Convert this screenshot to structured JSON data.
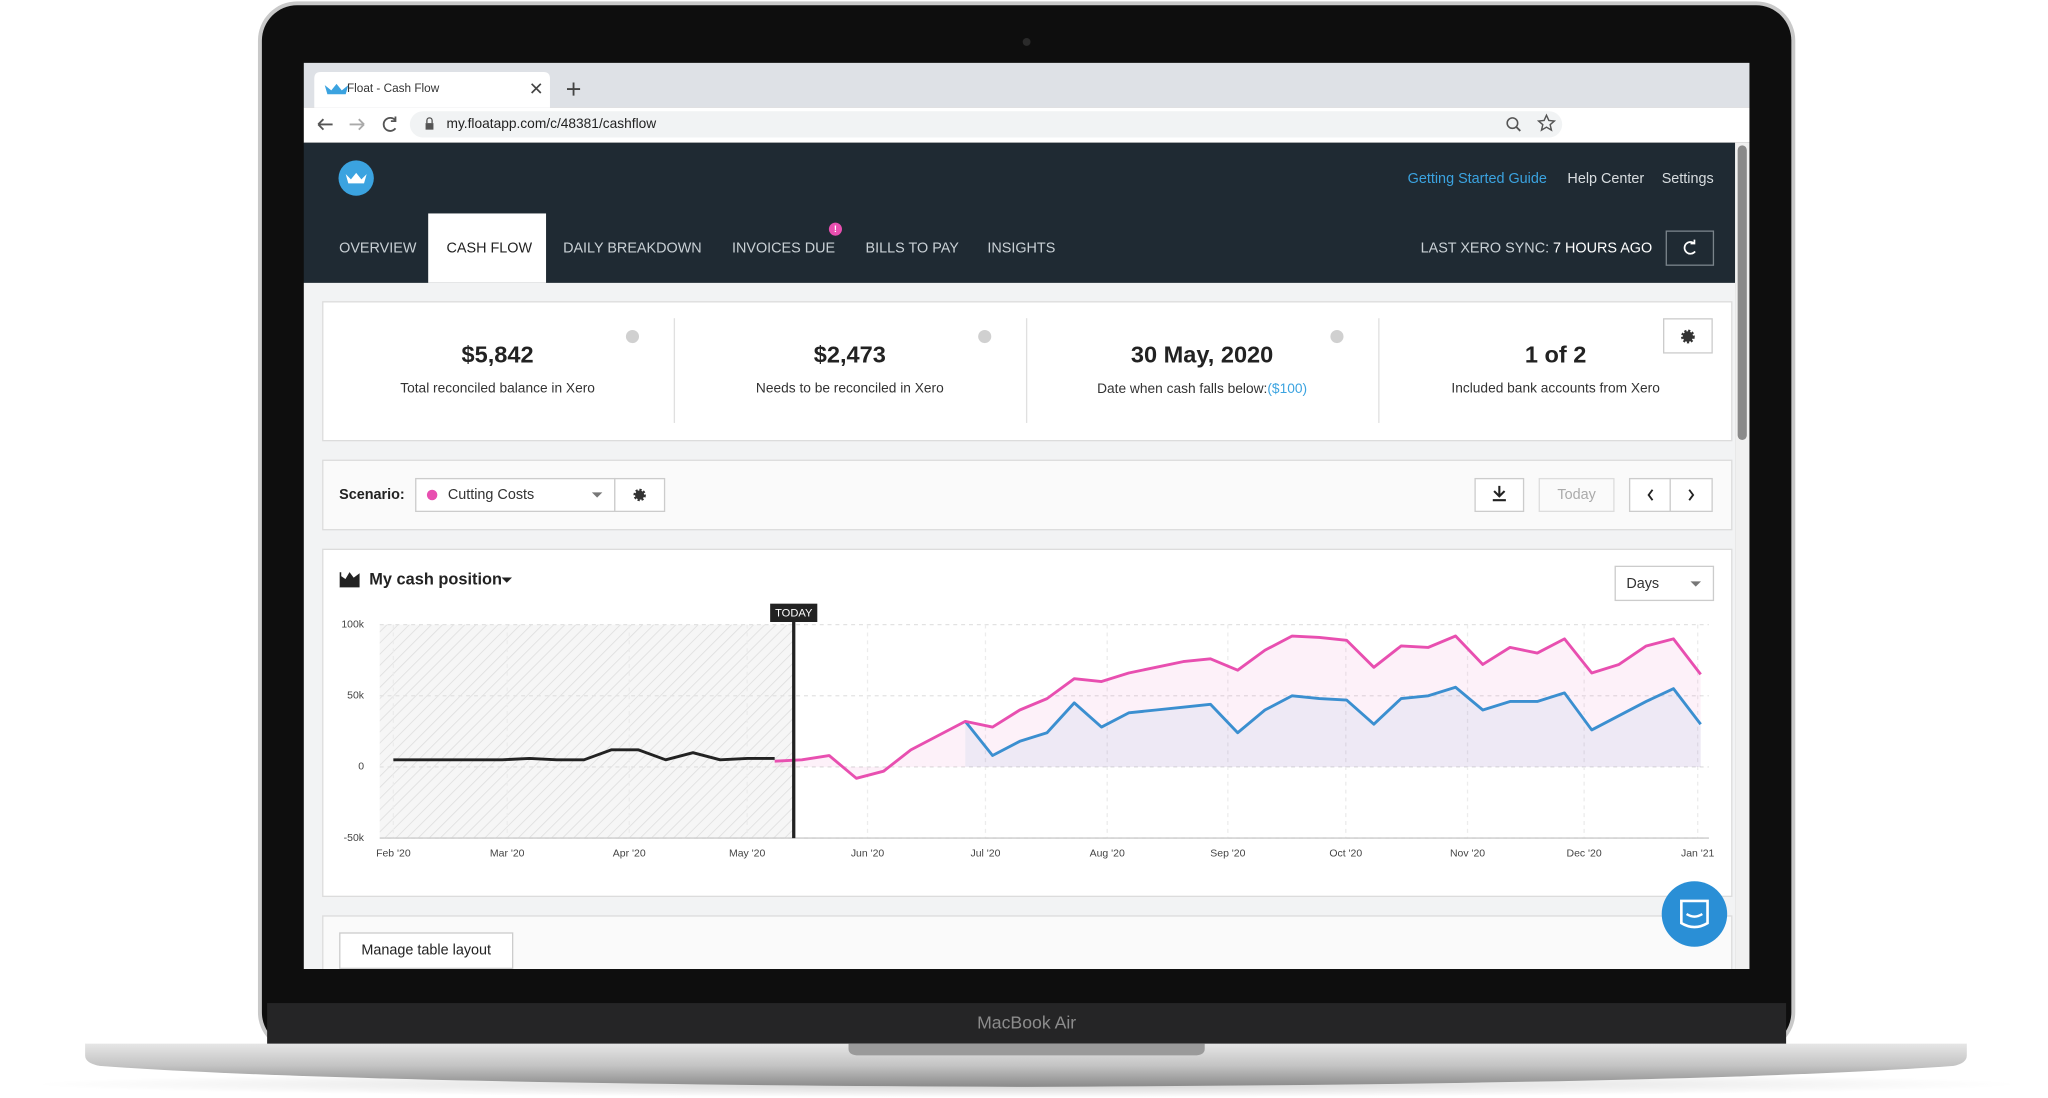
{
  "browser": {
    "tab_title": "Float - Cash Flow",
    "url": "my.floatapp.com/c/48381/cashflow"
  },
  "header": {
    "links": [
      "Getting Started Guide",
      "Help Center",
      "Settings"
    ],
    "tabs": [
      "OVERVIEW",
      "CASH FLOW",
      "DAILY BREAKDOWN",
      "INVOICES DUE",
      "BILLS TO PAY",
      "INSIGHTS"
    ],
    "invoices_badge": "!",
    "sync_label": "LAST XERO SYNC:",
    "sync_value": "7 HOURS AGO"
  },
  "summary": [
    {
      "value": "$5,842",
      "label": "Total reconciled balance in Xero"
    },
    {
      "value": "$2,473",
      "label": "Needs to be reconciled in Xero"
    },
    {
      "value": "30 May, 2020",
      "label": "Date when cash falls below:",
      "link": "($100)"
    },
    {
      "value": "1 of 2",
      "label": "Included bank accounts from Xero"
    }
  ],
  "scenario": {
    "label": "Scenario:",
    "name": "Cutting Costs",
    "today_button": "Today"
  },
  "chart_data": {
    "type": "line",
    "title": "My cash position",
    "period": "Days",
    "today": {
      "label": "TODAY",
      "x": 14.7
    },
    "xlim": [
      -0.5,
      48.3
    ],
    "xticks": [
      {
        "value": 0,
        "label": "Feb '20"
      },
      {
        "value": 4.18,
        "label": "Mar '20"
      },
      {
        "value": 8.66,
        "label": "Apr '20"
      },
      {
        "value": 12.99,
        "label": "May '20"
      },
      {
        "value": 17.41,
        "label": "Jun '20"
      },
      {
        "value": 21.74,
        "label": "Jul '20"
      },
      {
        "value": 26.21,
        "label": "Aug '20"
      },
      {
        "value": 30.64,
        "label": "Sep '20"
      },
      {
        "value": 34.97,
        "label": "Oct '20"
      },
      {
        "value": 39.44,
        "label": "Nov '20"
      },
      {
        "value": 43.72,
        "label": "Dec '20"
      },
      {
        "value": 47.89,
        "label": "Jan '21"
      }
    ],
    "ylim": [
      -50000,
      100000
    ],
    "yticks": [
      {
        "value": 100000,
        "label": "100k"
      },
      {
        "value": 50000,
        "label": "50k"
      },
      0,
      {
        "value": -50000,
        "label": "-50k"
      }
    ],
    "grid": true,
    "series": [
      {
        "color": "#222222",
        "area": false,
        "values": [
          5000,
          5000,
          5000,
          5000,
          5000,
          6000,
          5000,
          5000,
          12000,
          12000,
          5000,
          10000,
          5000,
          6000,
          6000,
          null,
          null,
          null,
          null,
          null,
          null,
          null,
          null,
          null,
          null,
          null,
          null,
          null,
          null,
          null,
          null,
          null,
          null,
          null,
          null,
          null,
          null,
          null,
          null,
          null,
          null,
          null,
          null,
          null,
          null,
          null,
          null,
          null,
          null
        ]
      },
      {
        "color": "#e84fb0",
        "area": true,
        "values": [
          null,
          null,
          null,
          null,
          null,
          null,
          null,
          null,
          null,
          null,
          null,
          null,
          null,
          null,
          4000,
          5000,
          8000,
          -8000,
          -3000,
          12000,
          22000,
          32000,
          28000,
          40000,
          48000,
          62000,
          60000,
          66000,
          70000,
          74000,
          76000,
          68000,
          82000,
          92000,
          91000,
          89000,
          70000,
          85000,
          84000,
          92000,
          72000,
          84000,
          80000,
          90000,
          66000,
          72000,
          85000,
          90000,
          65000
        ]
      },
      {
        "color": "#3b8fd0",
        "area": true,
        "values": [
          null,
          null,
          null,
          null,
          null,
          null,
          null,
          null,
          null,
          null,
          null,
          null,
          null,
          null,
          null,
          null,
          null,
          null,
          null,
          null,
          null,
          32000,
          8000,
          18000,
          24000,
          45000,
          28000,
          38000,
          40000,
          42000,
          44000,
          24000,
          40000,
          50000,
          48000,
          47000,
          30000,
          48000,
          50000,
          56000,
          40000,
          46000,
          46000,
          52000,
          26000,
          36000,
          46000,
          55000,
          30000
        ]
      }
    ]
  },
  "table": {
    "button": "Manage table layout"
  },
  "laptop": {
    "label": "MacBook Air"
  }
}
